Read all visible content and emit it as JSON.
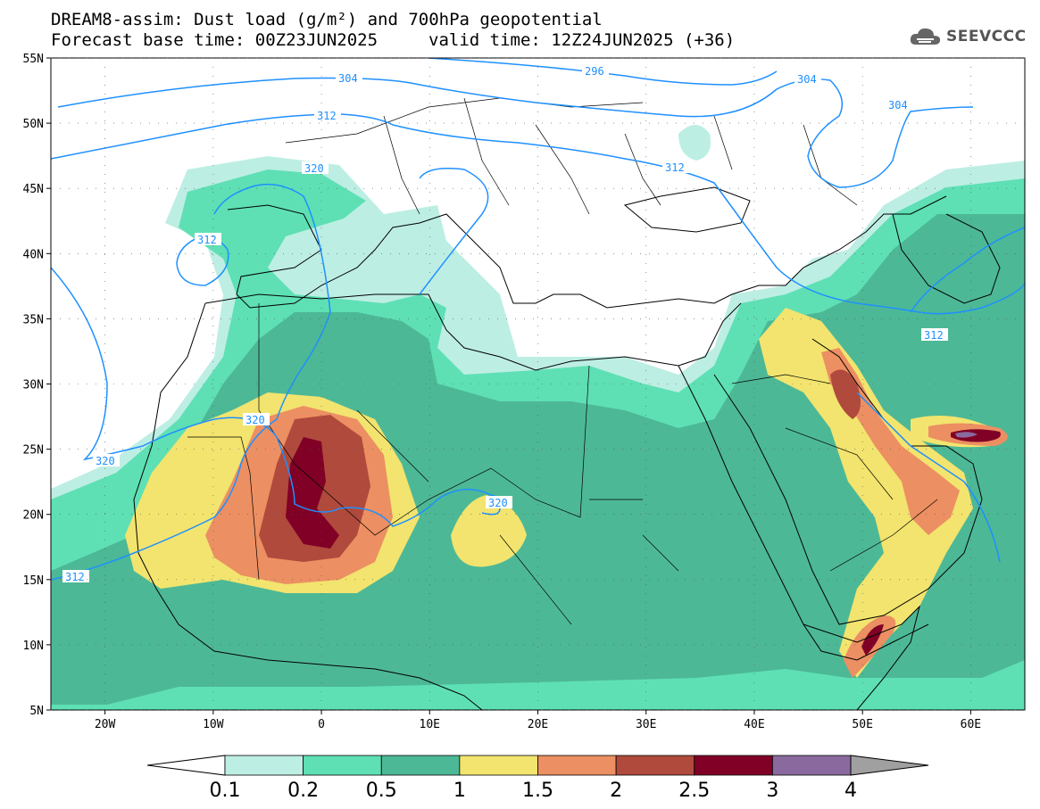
{
  "header": {
    "line1": "DREAM8-assim: Dust load (g/m²) and 700hPa geopotential",
    "line2a": "Forecast base time: 00Z23JUN2025",
    "line2b": "valid time: 12Z24JUN2025 (+36)"
  },
  "logo": {
    "text": "SEEVCCC",
    "icon": "cloud-icon"
  },
  "map": {
    "lat_labels": [
      "55N",
      "50N",
      "45N",
      "40N",
      "35N",
      "30N",
      "25N",
      "20N",
      "15N",
      "10N",
      "5N"
    ],
    "lon_labels": [
      "20W",
      "10W",
      "0",
      "10E",
      "20E",
      "30E",
      "40E",
      "50E",
      "60E"
    ],
    "contour_labels": [
      "304",
      "296",
      "304",
      "304",
      "312",
      "312",
      "320",
      "312",
      "320",
      "320",
      "320",
      "312",
      "312"
    ]
  },
  "colorbar": {
    "labels": [
      "0.1",
      "0.2",
      "0.5",
      "1",
      "1.5",
      "2",
      "2.5",
      "3",
      "4"
    ],
    "colors": [
      "#bdeee4",
      "#5ee0b4",
      "#4db896",
      "#f2e46e",
      "#ec8f62",
      "#b04a3c",
      "#800026",
      "#8a6a9e"
    ],
    "under_color": "#ffffff",
    "over_color": "#a0a0a0"
  },
  "colors": {
    "land_line": "#000000",
    "contour": "#1e90ff"
  }
}
